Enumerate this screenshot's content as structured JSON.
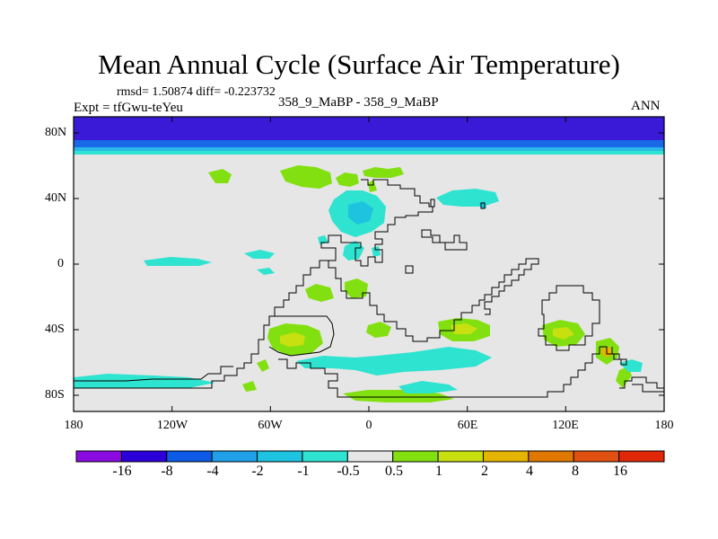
{
  "title": "Mean Annual Cycle (Surface Air Temperature)",
  "stats": "rmsd= 1.50874 diff= -0.223732",
  "experiment": "Expt = tfGwu-teYeu",
  "center_label": "358_9_MaBP - 358_9_MaBP",
  "season": "ANN",
  "lat_labels": [
    "80N",
    "40N",
    "0",
    "40S",
    "80S"
  ],
  "lon_labels": [
    "180",
    "120W",
    "60W",
    "0",
    "60E",
    "120E",
    "180"
  ],
  "colorbar": {
    "labels": [
      "-16",
      "-8",
      "-4",
      "-2",
      "-1",
      "-0.5",
      "0.5",
      "1",
      "2",
      "4",
      "8",
      "16"
    ],
    "colors": [
      "#8a0be0",
      "#2b00d8",
      "#0d5ae6",
      "#1fa0e8",
      "#1ec3e0",
      "#2ee3d0",
      "#e6e6e6",
      "#82e010",
      "#c8e010",
      "#e4b400",
      "#e07800",
      "#e05010",
      "#e02808"
    ]
  },
  "colors": {
    "land_background": "#e6e6e6",
    "polar_dark": "#3a1ad6",
    "polar_mid": "#1a6ae8",
    "polar_light": "#29b8e8",
    "anomaly_cyan": "#2ee3d0",
    "anomaly_cyan_dark": "#1ec3e0",
    "anomaly_green": "#82e010",
    "anomaly_yellow": "#c8e010",
    "anomaly_orange": "#e4b400",
    "coastline": "#000000"
  }
}
